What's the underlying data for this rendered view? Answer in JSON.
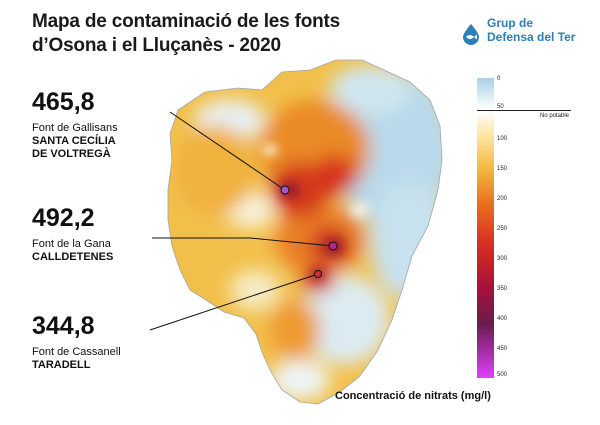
{
  "title": {
    "line1": "Mapa de contaminació de les fonts",
    "line2": "d’Osona i el Lluçanès - 2020"
  },
  "logo": {
    "icon": "drop-fish-logo-icon",
    "line1": "Grup de",
    "line2": "Defensa del Ter",
    "color": "#2c7fb8"
  },
  "callouts": [
    {
      "value": "465,8",
      "name": "Font de Gallisans",
      "town_line1": "SANTA CECÍLIA",
      "town_line2": "DE VOLTREGÀ",
      "marker_color": "#9b59d6"
    },
    {
      "value": "492,2",
      "name": "Font de la Gana",
      "town_line1": "CALLDETENES",
      "town_line2": "",
      "marker_color": "#b02a8c"
    },
    {
      "value": "344,8",
      "name": "Font de Cassanell",
      "town_line1": "TARADELL",
      "town_line2": "",
      "marker_color": "#c0392b"
    }
  ],
  "legend": {
    "title": "Concentració de nitrats (mg/l)",
    "ticks": [
      "0",
      "50",
      "100",
      "150",
      "200",
      "250",
      "300",
      "350",
      "400",
      "450",
      "500"
    ],
    "threshold_label": "No potable",
    "threshold_value": "50",
    "colors": {
      "low": "#a9d0e5",
      "threshold": "#ffffff",
      "mid": "#f4b942",
      "high": "#d7301f",
      "very_high": "#6a1b4d",
      "max": "#e040fb"
    }
  }
}
